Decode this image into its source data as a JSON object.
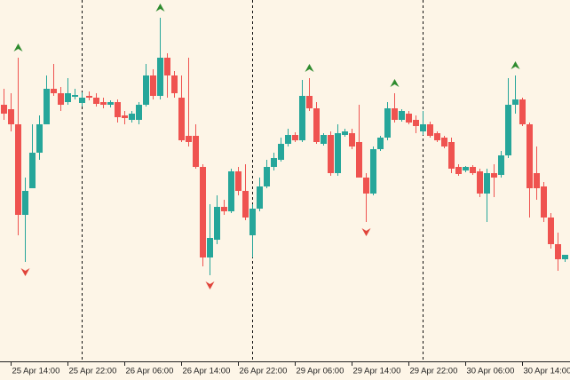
{
  "chart_data": {
    "type": "candlestick",
    "categories": [
      null,
      "25 Apr 14:00",
      null,
      null,
      null,
      null,
      null,
      null,
      null,
      "25 Apr 22:00",
      null,
      null,
      null,
      null,
      null,
      null,
      null,
      "26 Apr 06:00",
      null,
      null,
      null,
      null,
      null,
      null,
      null,
      "26 Apr 14:00",
      null,
      null,
      null,
      null,
      null,
      null,
      null,
      "26 Apr 22:00",
      null,
      null,
      null,
      null,
      null,
      null,
      null,
      "29 Apr 06:00",
      null,
      null,
      null,
      null,
      null,
      null,
      null,
      "29 Apr 14:00",
      null,
      null,
      null,
      null,
      null,
      null,
      null,
      "29 Apr 22:00",
      null,
      null,
      null,
      null,
      null,
      null,
      null,
      "30 Apr 06:00",
      null,
      null,
      null,
      null,
      null,
      null,
      null,
      "30 Apr 14:00",
      null,
      null,
      null,
      null,
      null,
      null
    ],
    "open": [
      287,
      282,
      265,
      163,
      193,
      233,
      265,
      305,
      300,
      290,
      296,
      289,
      297,
      295,
      290,
      287,
      290,
      275,
      270,
      270,
      287,
      320,
      297,
      340,
      320,
      295,
      252,
      252,
      217,
      115,
      135,
      172,
      167,
      212,
      190,
      140,
      170,
      195,
      217,
      225,
      243,
      253,
      247,
      297,
      283,
      243,
      253,
      210,
      253,
      255,
      245,
      205,
      187,
      237,
      250,
      283,
      270,
      277,
      270,
      257,
      265,
      255,
      250,
      245,
      217,
      213,
      217,
      212,
      187,
      210,
      208,
      230,
      287,
      293,
      265,
      210,
      195,
      160,
      130,
      113
    ],
    "high": [
      305,
      300,
      340,
      205,
      265,
      275,
      320,
      333,
      307,
      317,
      305,
      301,
      302,
      300,
      295,
      292,
      293,
      280,
      280,
      290,
      333,
      327,
      385,
      345,
      325,
      320,
      340,
      265,
      220,
      175,
      185,
      180,
      215,
      217,
      220,
      175,
      205,
      225,
      233,
      250,
      260,
      256,
      315,
      317,
      290,
      255,
      257,
      265,
      260,
      260,
      287,
      210,
      240,
      252,
      290,
      300,
      282,
      280,
      275,
      280,
      268,
      257,
      252,
      250,
      220,
      218,
      219,
      215,
      215,
      220,
      235,
      317,
      320,
      295,
      267,
      240,
      200,
      165,
      143,
      118
    ],
    "low": [
      270,
      257,
      140,
      110,
      193,
      225,
      265,
      297,
      280,
      287,
      293,
      285,
      292,
      285,
      283,
      284,
      267,
      265,
      267,
      265,
      285,
      293,
      293,
      295,
      295,
      245,
      240,
      215,
      105,
      95,
      130,
      163,
      165,
      185,
      157,
      115,
      167,
      193,
      213,
      223,
      240,
      245,
      245,
      280,
      243,
      241,
      207,
      207,
      251,
      237,
      205,
      155,
      185,
      235,
      247,
      267,
      268,
      265,
      255,
      253,
      250,
      245,
      238,
      210,
      207,
      211,
      208,
      183,
      155,
      183,
      205,
      227,
      277,
      263,
      160,
      180,
      155,
      125,
      100,
      110
    ],
    "close": [
      277,
      265,
      163,
      190,
      233,
      265,
      305,
      300,
      287,
      300,
      298,
      295,
      295,
      288,
      287,
      290,
      273,
      272,
      277,
      287,
      320,
      297,
      340,
      320,
      300,
      247,
      245,
      217,
      115,
      137,
      172,
      167,
      212,
      190,
      160,
      170,
      195,
      217,
      227,
      243,
      253,
      247,
      297,
      283,
      245,
      253,
      210,
      255,
      257,
      240,
      205,
      187,
      237,
      250,
      283,
      270,
      280,
      267,
      263,
      265,
      252,
      247,
      240,
      215,
      209,
      217,
      210,
      187,
      210,
      205,
      230,
      287,
      293,
      265,
      193,
      193,
      160,
      130,
      113,
      118
    ],
    "up_color": "#26a69a",
    "down_color": "#ef5350",
    "up_signals": [
      2,
      22,
      43,
      55,
      72
    ],
    "up_signal_color": "#2e8b2e",
    "down_signals": [
      3,
      29,
      51
    ],
    "down_signal_color": "#e0443a",
    "period_separators": [
      11,
      35,
      59
    ],
    "ylim": [
      0,
      405
    ]
  }
}
